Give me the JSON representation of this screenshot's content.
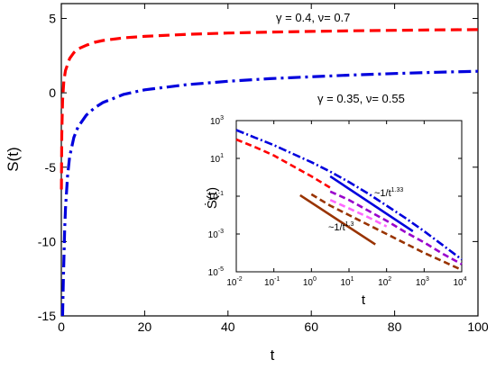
{
  "chart_data": [
    {
      "id": "main",
      "type": "line",
      "xlabel": "t",
      "ylabel": "S(t)",
      "xlim": [
        0,
        100
      ],
      "ylim": [
        -15,
        6
      ],
      "xticks": [
        0,
        20,
        40,
        60,
        80,
        100
      ],
      "yticks": [
        -15,
        -10,
        -5,
        0,
        5
      ],
      "grid": false,
      "series": [
        {
          "color": "#ff0000",
          "style": "dashed",
          "x": [
            0.02,
            0.1,
            0.3,
            0.6,
            1,
            2,
            3,
            4,
            6,
            8,
            10,
            15,
            20,
            30,
            40,
            50,
            60,
            70,
            80,
            90,
            100
          ],
          "y": [
            -6.5,
            -2.8,
            -0.5,
            0.8,
            1.5,
            2.3,
            2.7,
            2.95,
            3.2,
            3.4,
            3.52,
            3.7,
            3.8,
            3.93,
            4.02,
            4.08,
            4.13,
            4.17,
            4.2,
            4.23,
            4.25
          ]
        },
        {
          "color": "#0000dd",
          "style": "dashdot",
          "x": [
            0.3,
            0.5,
            0.8,
            1,
            1.5,
            2,
            3,
            4,
            6,
            8,
            10,
            15,
            20,
            30,
            40,
            50,
            60,
            70,
            80,
            90,
            100
          ],
          "y": [
            -15,
            -12.5,
            -9.2,
            -7.8,
            -5.6,
            -4.3,
            -3.0,
            -2.3,
            -1.5,
            -1.0,
            -0.65,
            -0.1,
            0.2,
            0.55,
            0.78,
            0.95,
            1.08,
            1.2,
            1.3,
            1.38,
            1.45
          ]
        }
      ],
      "annotations": {
        "red": "γ = 0.4,  ν= 0.7",
        "blue": "γ = 0.35,  ν= 0.55"
      }
    },
    {
      "id": "inset",
      "type": "line",
      "xlabel": "t",
      "ylabel": "Ṡ(t)",
      "xscale": "log",
      "yscale": "log",
      "xlim_exp": [
        -2,
        4
      ],
      "ylim_exp": [
        -5,
        3
      ],
      "xticks_exp": [
        -2,
        -1,
        0,
        1,
        2,
        3,
        4
      ],
      "yticks_exp": [
        -5,
        -3,
        -1,
        1,
        3
      ],
      "grid": false,
      "series": [
        {
          "color": "#ff0000",
          "style": "dashed",
          "log10x": [
            -2,
            -1.5,
            -1,
            -0.5,
            0,
            0.5
          ],
          "log10y": [
            2.0,
            1.6,
            1.15,
            0.6,
            0.05,
            -0.55
          ]
        },
        {
          "color": "#0000dd",
          "style": "dashdot",
          "log10x": [
            -2,
            -1.5,
            -1,
            -0.5,
            0,
            0.5,
            1,
            1.5,
            2,
            2.5,
            3,
            3.5,
            4
          ],
          "log10y": [
            2.5,
            2.1,
            1.7,
            1.25,
            0.8,
            0.3,
            -0.25,
            -0.85,
            -1.5,
            -2.15,
            -2.85,
            -3.6,
            -4.35
          ]
        },
        {
          "color": "#9900cc",
          "style": "dashed",
          "log10x": [
            0.5,
            1,
            1.5,
            2,
            2.5,
            3,
            3.5,
            4
          ],
          "log10y": [
            -0.75,
            -1.2,
            -1.75,
            -2.3,
            -2.9,
            -3.45,
            -4.05,
            -4.6
          ]
        },
        {
          "color": "#ff66ff",
          "style": "dashed",
          "log10x": [
            0.5,
            1,
            1.5,
            2
          ],
          "log10y": [
            -1.2,
            -1.65,
            -2.1,
            -2.6
          ]
        },
        {
          "color": "#993300",
          "style": "dashed",
          "log10x": [
            0,
            0.5,
            1,
            1.5,
            2,
            2.5,
            3,
            3.5,
            4
          ],
          "log10y": [
            -0.9,
            -1.5,
            -2.0,
            -2.5,
            -3.0,
            -3.5,
            -4.0,
            -4.45,
            -4.9
          ]
        },
        {
          "color": "#0000dd",
          "style": "solid",
          "log10x": [
            0.5,
            2.7
          ],
          "log10y": [
            0.05,
            -2.85
          ]
        },
        {
          "color": "#993300",
          "style": "solid",
          "log10x": [
            -0.3,
            1.7
          ],
          "log10y": [
            -0.95,
            -3.55
          ]
        }
      ],
      "annotations": {
        "upper_prefix": "~1/t",
        "upper_exp": "1.33",
        "lower_prefix": "~1/t",
        "lower_exp": "1.3"
      }
    }
  ]
}
